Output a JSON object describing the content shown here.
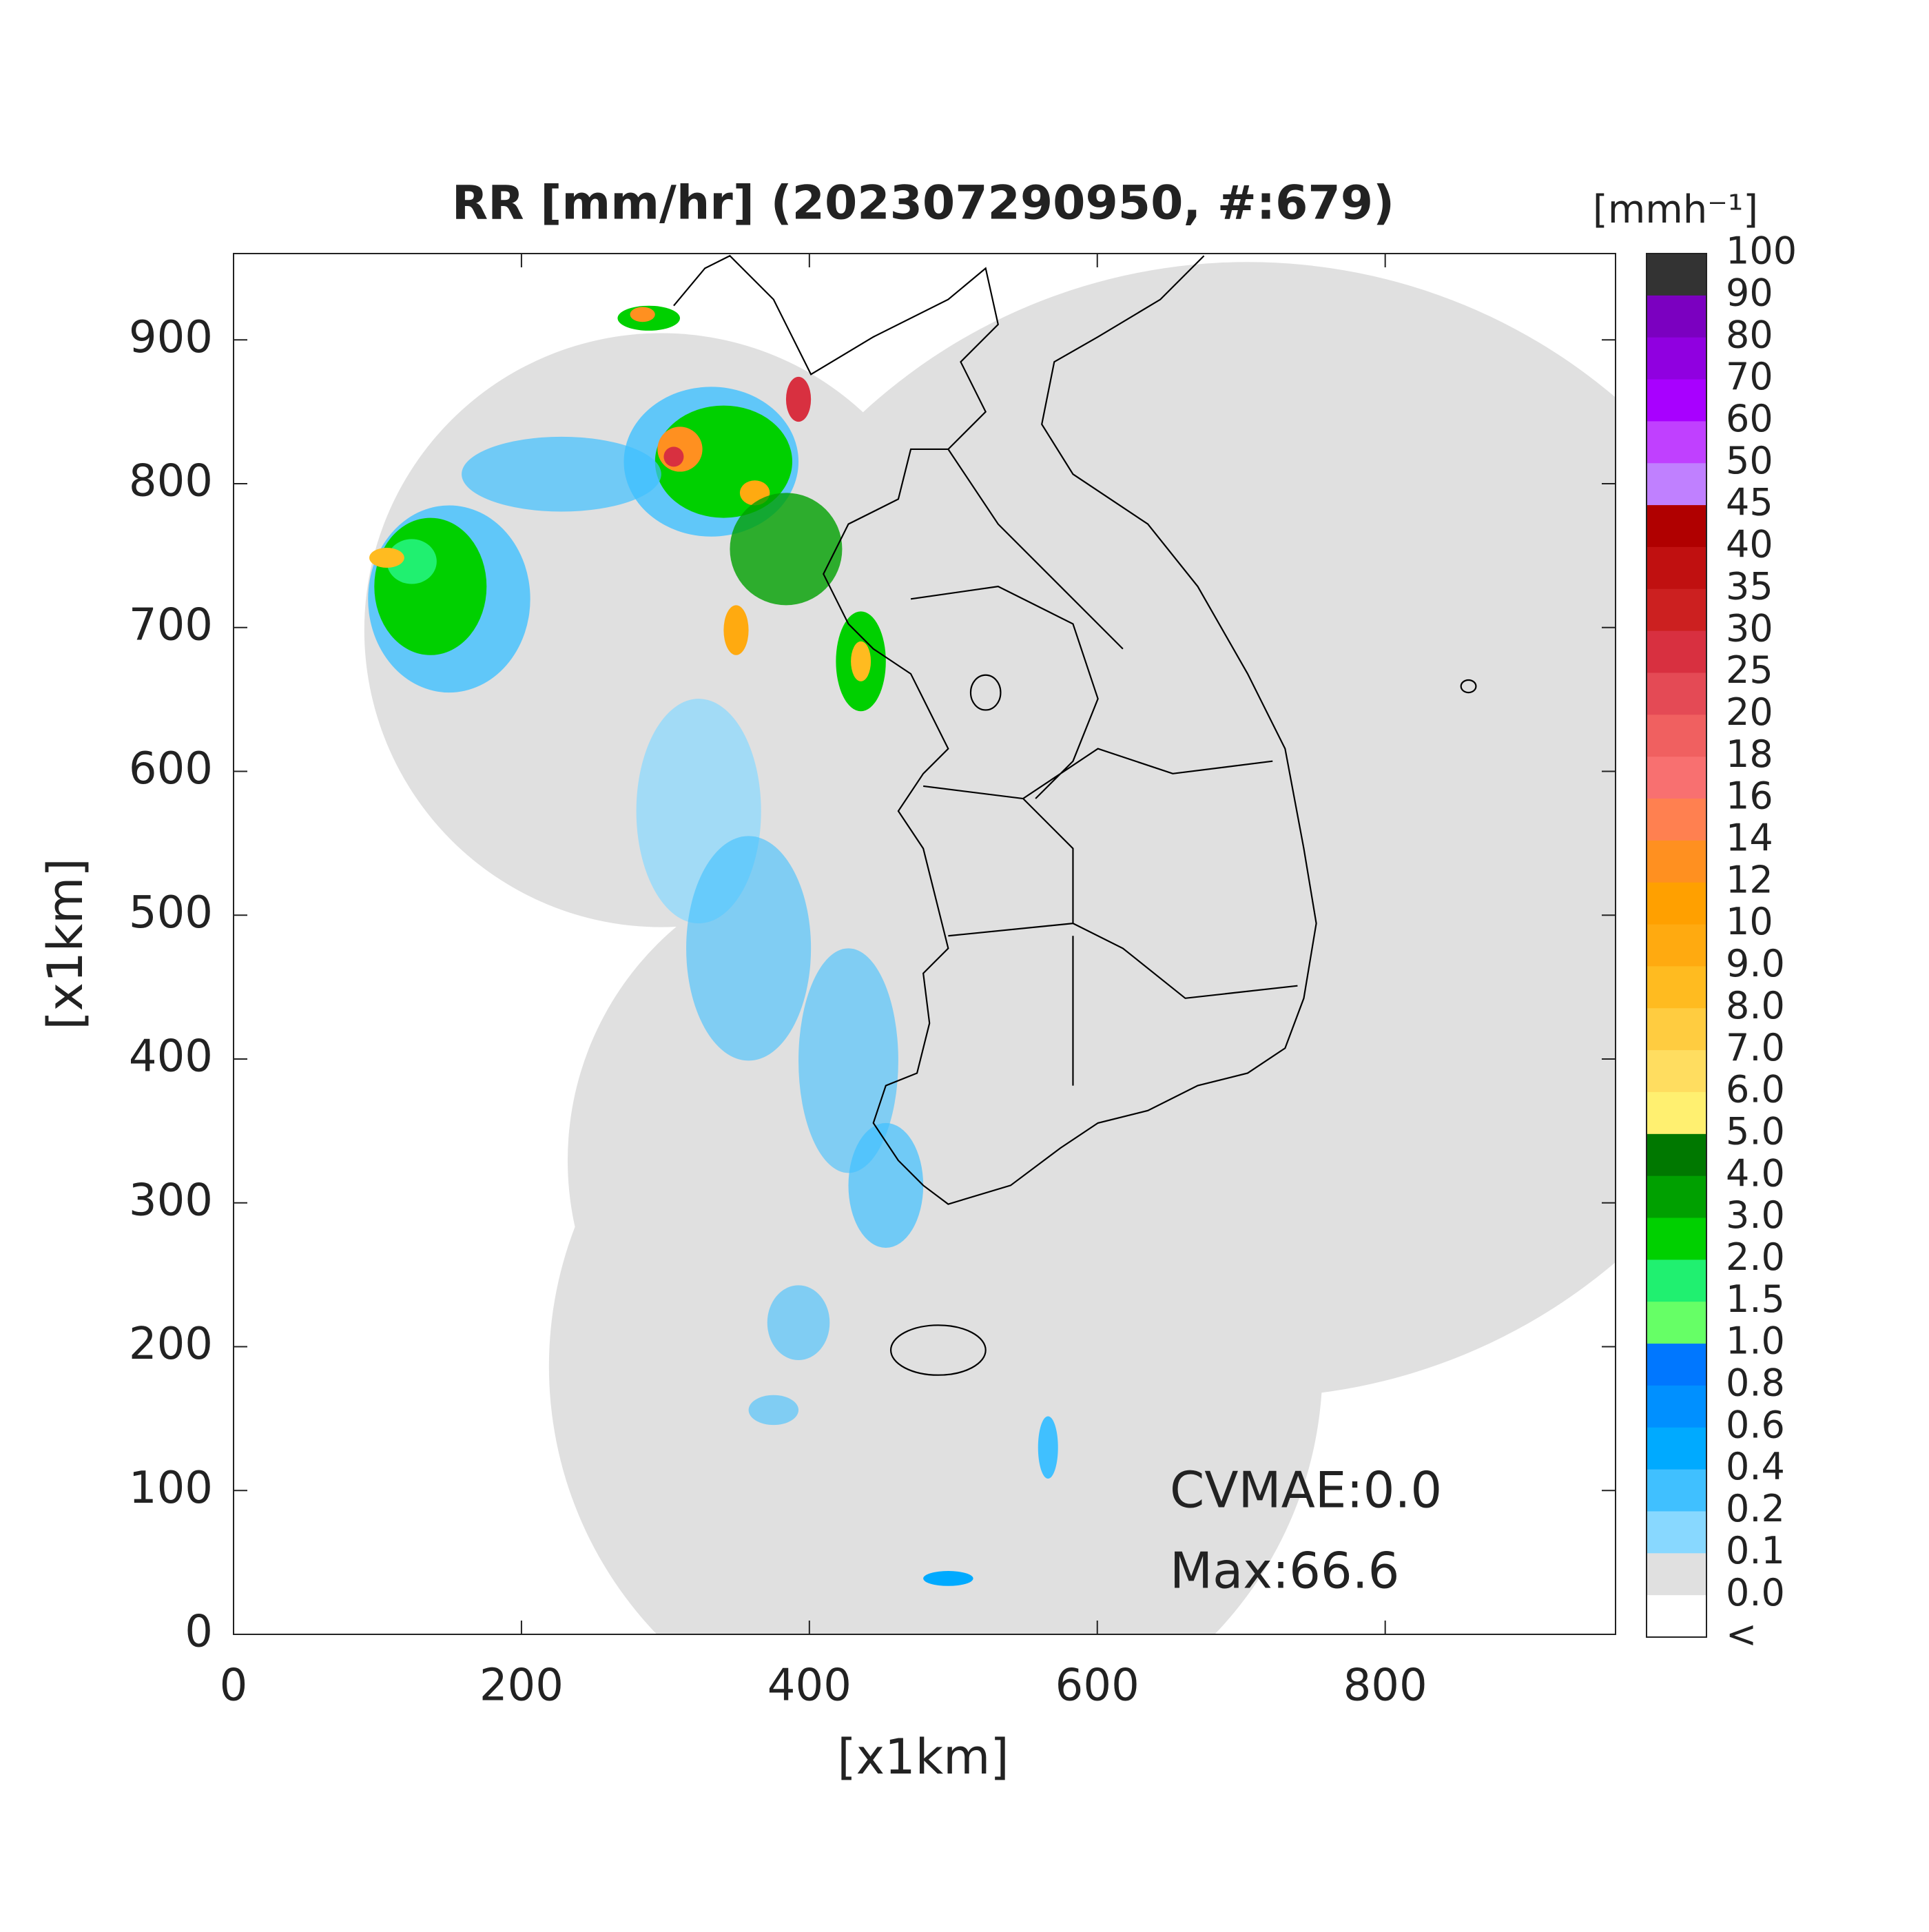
{
  "title": "RR [mm/hr] (202307290950, #:679)",
  "x_axis": {
    "label": "[x1km]",
    "lim": [
      0,
      960
    ],
    "ticks": [
      0,
      200,
      400,
      600,
      800
    ]
  },
  "y_axis": {
    "label": "[x1km]",
    "lim": [
      0,
      960
    ],
    "ticks": [
      0,
      100,
      200,
      300,
      400,
      500,
      600,
      700,
      800,
      900
    ]
  },
  "colorbar": {
    "unit": "[mmh⁻¹]",
    "labels": [
      "100",
      "90",
      "80",
      "70",
      "60",
      "50",
      "45",
      "40",
      "35",
      "30",
      "25",
      "20",
      "18",
      "16",
      "14",
      "12",
      "10",
      "9.0",
      "8.0",
      "7.0",
      "6.0",
      "5.0",
      "4.0",
      "3.0",
      "2.0",
      "1.5",
      "1.0",
      "0.8",
      "0.6",
      "0.4",
      "0.2",
      "0.1",
      "0.0",
      "<"
    ],
    "colors": [
      "#333333",
      "#7b00c0",
      "#9000e0",
      "#a800ff",
      "#c040ff",
      "#c080ff",
      "#b00000",
      "#c01010",
      "#cc2020",
      "#d83040",
      "#e44a55",
      "#f06060",
      "#f87070",
      "#ff8050",
      "#ff9020",
      "#ffa000",
      "#ffaa10",
      "#ffbb20",
      "#ffcc40",
      "#ffdd60",
      "#fff070",
      "#007800",
      "#00a000",
      "#00d000",
      "#20f070",
      "#66ff66",
      "#0077ff",
      "#0090ff",
      "#00aaff",
      "#40c0ff",
      "#88d8ff",
      "#e0e0e0",
      "#ffffff"
    ]
  },
  "annotations": [
    "CVMAE:0.0",
    "Max:66.6"
  ]
}
